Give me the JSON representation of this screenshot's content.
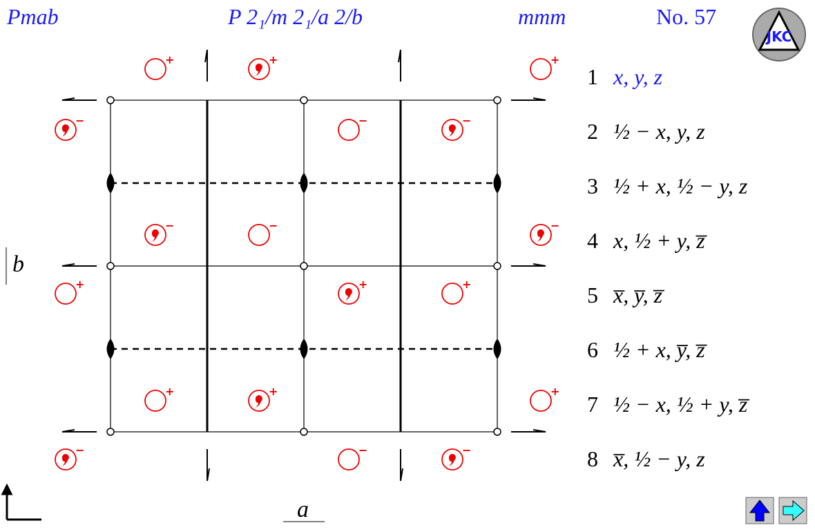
{
  "header": {
    "short_symbol": "Pmab",
    "full_symbol": "P 2₁/m 2₁/a 2/b",
    "point_group": "mmm",
    "number": "No. 57",
    "logo": "JKC"
  },
  "axes": {
    "a": "a",
    "b": "b"
  },
  "symbols": [
    {
      "sign": "+",
      "comma": false
    },
    {
      "sign": "+",
      "comma": true
    },
    {
      "sign": "+",
      "comma": false
    },
    {
      "sign": "−",
      "comma": true
    },
    {
      "sign": "−",
      "comma": false
    },
    {
      "sign": "−",
      "comma": true
    },
    {
      "sign": "−",
      "comma": true
    },
    {
      "sign": "−",
      "comma": false
    },
    {
      "sign": "−",
      "comma": true
    },
    {
      "sign": "+",
      "comma": false
    },
    {
      "sign": "+",
      "comma": true
    },
    {
      "sign": "+",
      "comma": false
    },
    {
      "sign": "+",
      "comma": false
    },
    {
      "sign": "+",
      "comma": true
    },
    {
      "sign": "+",
      "comma": false
    },
    {
      "sign": "−",
      "comma": true
    },
    {
      "sign": "−",
      "comma": false
    },
    {
      "sign": "−",
      "comma": true
    }
  ],
  "positions": [
    {
      "number": "1",
      "coords": "x, y, z"
    },
    {
      "number": "2",
      "coords": "½ − x, y, z"
    },
    {
      "number": "3",
      "coords": "½ + x, ½ − y, z"
    },
    {
      "number": "4",
      "coords": "x, ½ + y, z̅"
    },
    {
      "number": "5",
      "coords": "x̅, y̅, z̅"
    },
    {
      "number": "6",
      "coords": "½ + x, y̅, z̅"
    },
    {
      "number": "7",
      "coords": "½ − x, ½ + y, z̅"
    },
    {
      "number": "8",
      "coords": "x̅, ½ − y, z"
    }
  ]
}
